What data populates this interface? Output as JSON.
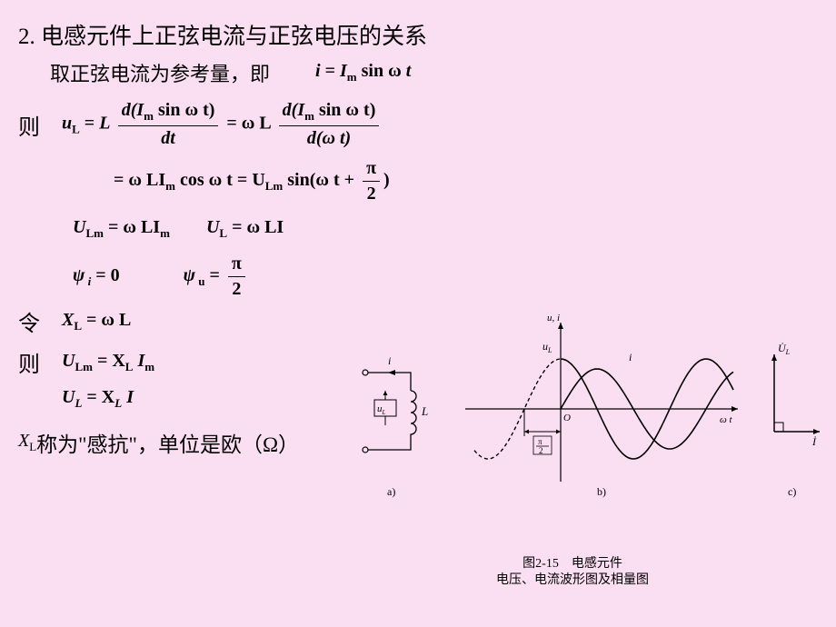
{
  "heading": "2. 电感元件上正弦电流与正弦电压的关系",
  "ref_line_prefix": "取正弦电流为参考量，即",
  "lead_then": "则",
  "lead_let": "令",
  "formula_i": {
    "lhs": "i",
    "eq": " = ",
    "Im": "I",
    "Im_sub": "m",
    "sin": " sin ",
    "omega": "ω",
    "t": " t"
  },
  "deriv1": {
    "uL": "u",
    "uL_sub": "L",
    "eq": " = ",
    "L": "L ",
    "num1_a": "d(I",
    "num1_sub": "m",
    "num1_b": " sin ω t)",
    "den1": "dt",
    "eq2": " = ω L ",
    "num2_a": "d(I",
    "num2_sub": "m",
    "num2_b": " sin ω t)",
    "den2": "d(ω t)"
  },
  "deriv2": {
    "a": " = ω LI",
    "asub": "m",
    "b": " cos ω t = U",
    "bsub": "Lm",
    "c": " sin(ω t + ",
    "pi": "π",
    "two": "2",
    "d": ")"
  },
  "eq_ULm": {
    "a": "U",
    "asub": "Lm",
    "b": " = ω LI",
    "bsub": "m"
  },
  "eq_UL": {
    "a": "U",
    "asub": "L",
    "b": " = ω LI"
  },
  "eq_psi_i": {
    "a": "ψ",
    "asub": " i",
    "b": " = 0"
  },
  "eq_psi_u": {
    "a": "ψ",
    "asub": " u",
    "b": " = ",
    "pi": "π",
    "two": "2"
  },
  "eq_XL": {
    "a": "X",
    "asub": "L",
    "b": " = ω L"
  },
  "eq_ULm2": {
    "a": "U",
    "asub": "Lm",
    "b": " = X",
    "bsub": "L",
    "c": " I",
    "csub": "m"
  },
  "eq_UL2": {
    "a": "U",
    "asub": "L",
    "b": " = X",
    "bsub": "L",
    "c": " I"
  },
  "foot_prefix": "X",
  "foot_sub": "L",
  "foot_text": "称为\"感抗\"，单位是欧（Ω）",
  "caption_line1": "图2-15　电感元件",
  "caption_line2": "电压、电流波形图及相量图",
  "figure": {
    "type": "diagram",
    "background": "#fadef2",
    "circuit": {
      "box_stroke": "#000",
      "label_i": "i",
      "label_uL": "uL",
      "label_L": "L",
      "label": "a)"
    },
    "wave": {
      "axis_label_y": "u, i",
      "axis_label_x": "ω t",
      "curve_uL": "uL",
      "curve_i": "i",
      "phase_label": "π/2",
      "origin": "O",
      "u_amp": 55,
      "i_amp": 44,
      "label": "b)",
      "stroke": "#000",
      "dash": "4 3"
    },
    "phasor": {
      "U": "U̇L",
      "I": "İ",
      "label": "c)",
      "stroke": "#000"
    }
  }
}
